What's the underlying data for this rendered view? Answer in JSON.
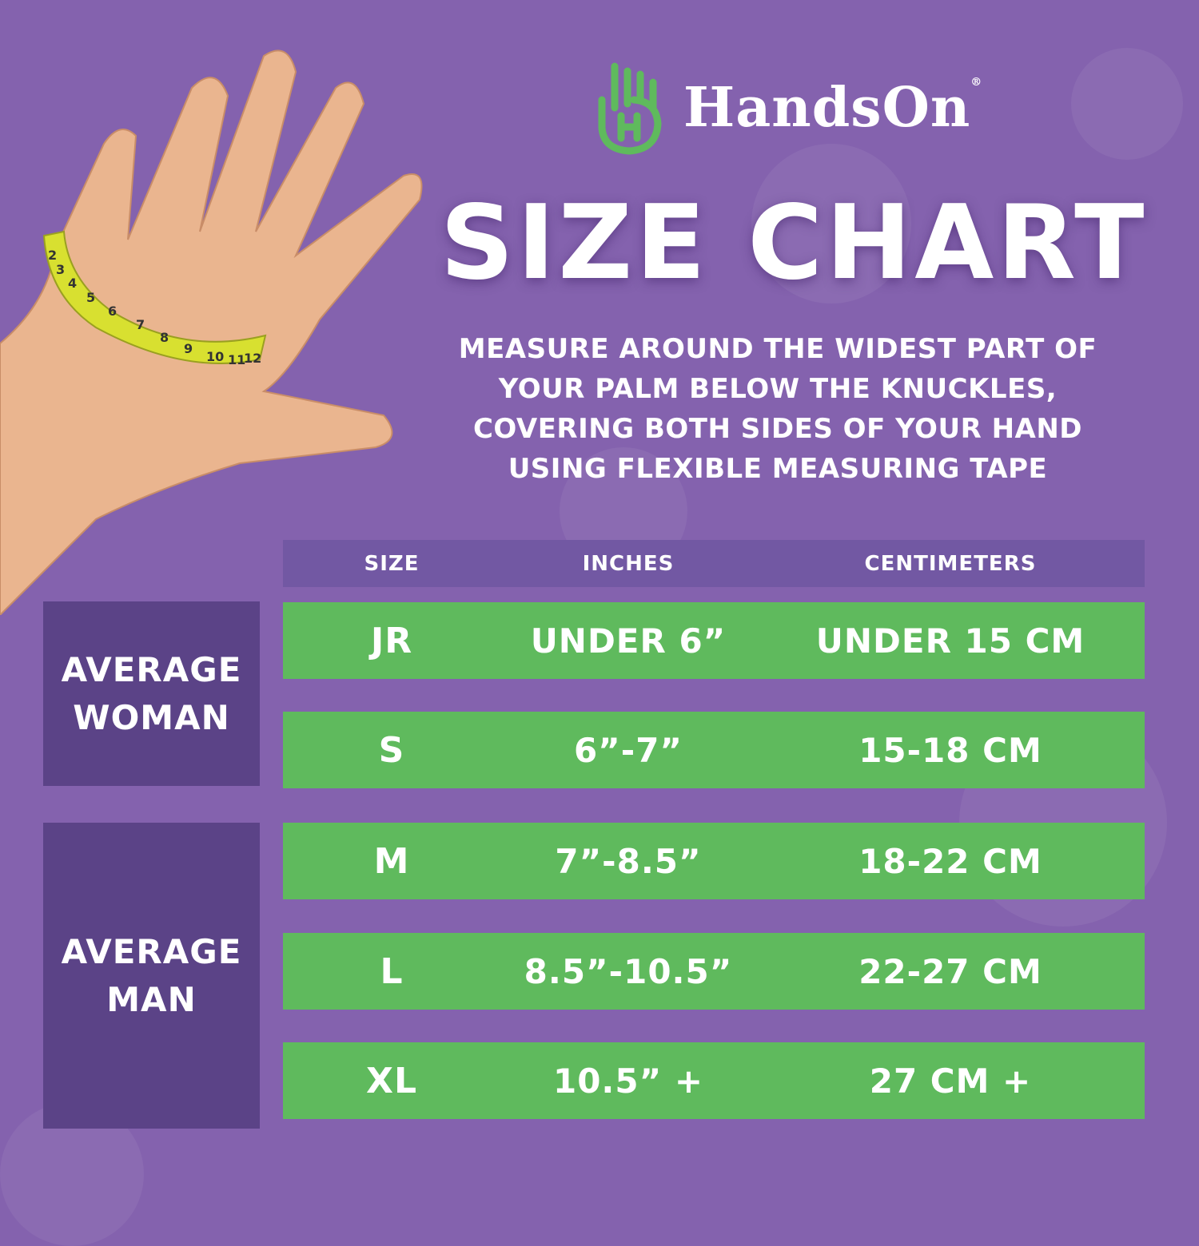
{
  "brand": {
    "name": "HandsOn",
    "registered": "®",
    "logo_color": "#5fba5d"
  },
  "title": "SIZE CHART",
  "instructions": "MEASURE AROUND THE WIDEST PART OF YOUR PALM BELOW THE KNUCKLES, COVERING BOTH SIDES OF YOUR HAND USING FLEXIBLE MEASURING TAPE",
  "colors": {
    "background": "#8462ae",
    "header": "#7258a3",
    "group": "#5b4387",
    "row": "#5fba5d"
  },
  "table": {
    "headers": [
      "SIZE",
      "INCHES",
      "CENTIMETERS"
    ],
    "groups": [
      "AVERAGE WOMAN",
      "AVERAGE MAN"
    ],
    "rows": [
      {
        "size": "JR",
        "inches": "UNDER 6”",
        "cm": "UNDER 15 CM"
      },
      {
        "size": "S",
        "inches": "6”-7”",
        "cm": "15-18 CM"
      },
      {
        "size": "M",
        "inches": "7”-8.5”",
        "cm": "18-22 CM"
      },
      {
        "size": "L",
        "inches": "8.5”-10.5”",
        "cm": "22-27 CM"
      },
      {
        "size": "XL",
        "inches": "10.5” +",
        "cm": "27 CM +"
      }
    ]
  },
  "tape_numbers": [
    "2",
    "3",
    "4",
    "5",
    "6",
    "7",
    "8",
    "9",
    "10",
    "11",
    "12"
  ]
}
